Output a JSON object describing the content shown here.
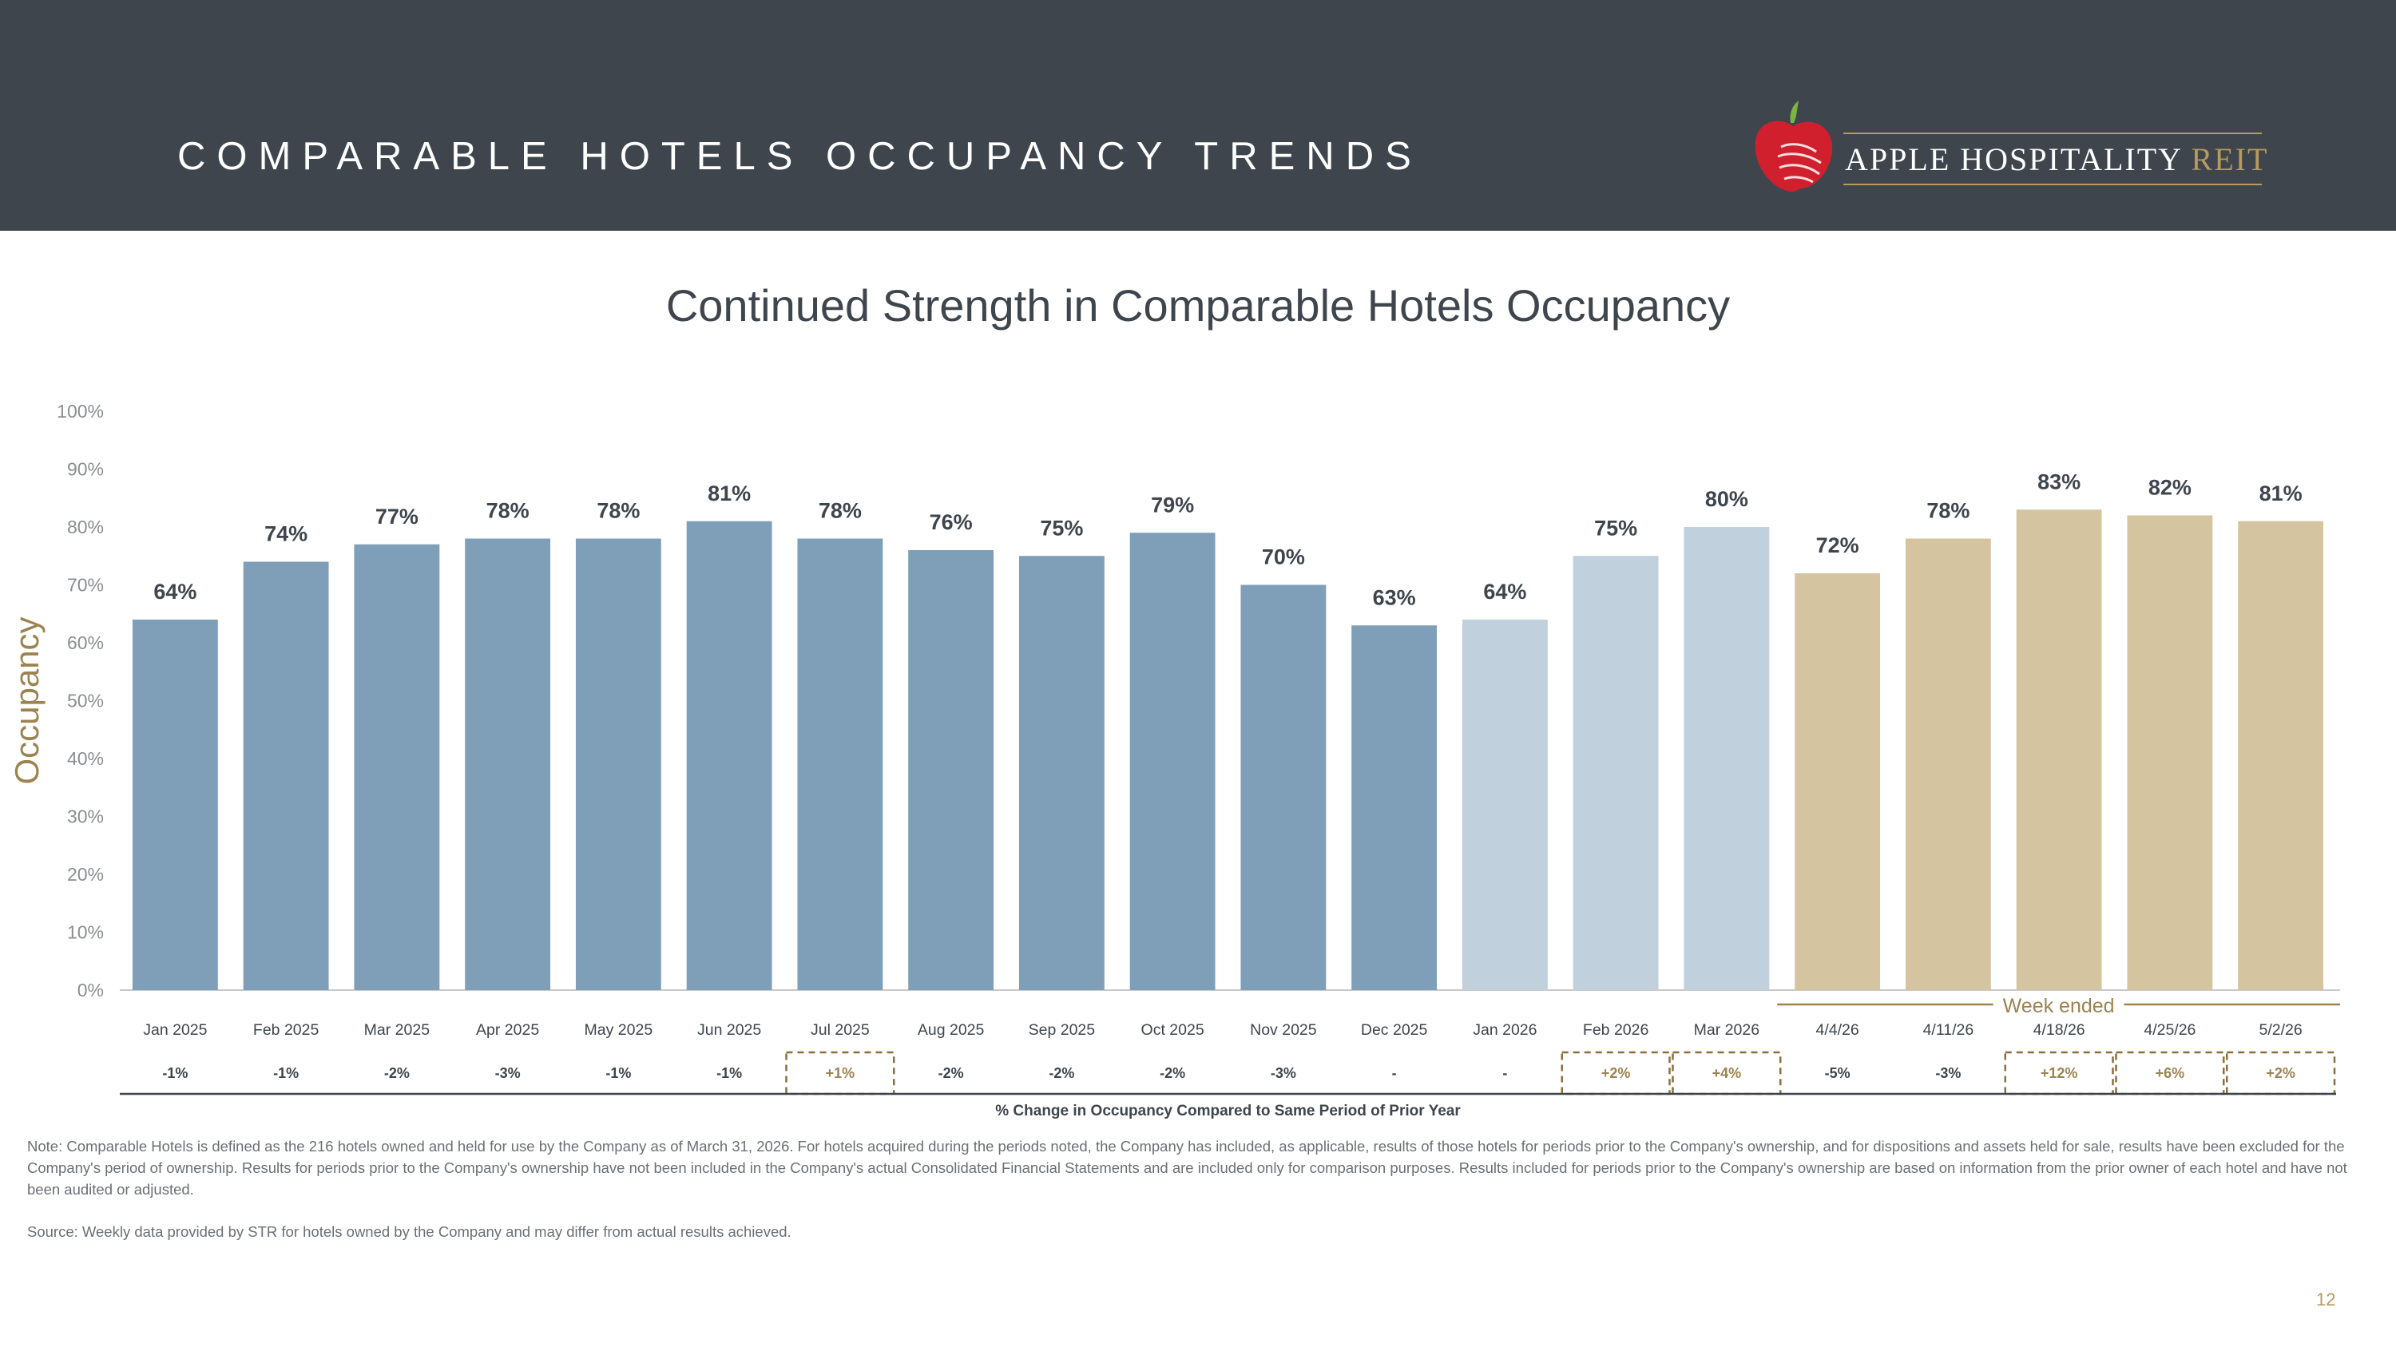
{
  "header": {
    "title": "COMPARABLE HOTELS OCCUPANCY TRENDS",
    "logo_main": "APPLE HOSPITALITY",
    "logo_accent": "REIT"
  },
  "subtitle": "Continued Strength in Comparable Hotels Occupancy",
  "colors": {
    "header_bg": "#3e454d",
    "bar_2025": "#7f9fb8",
    "bar_2026_month": "#c0d0dd",
    "bar_week": "#d4c4a0",
    "accent_gold": "#9c8350",
    "dashed_box": "#8a6f3c"
  },
  "chart_data": {
    "type": "bar",
    "title": "Continued Strength in Comparable Hotels Occupancy",
    "ylabel": "Occupancy",
    "xlabel": "",
    "ylim": [
      0,
      100
    ],
    "yticks": [
      "0%",
      "10%",
      "20%",
      "30%",
      "40%",
      "50%",
      "60%",
      "70%",
      "80%",
      "90%",
      "100%"
    ],
    "grid": false,
    "categories": [
      "Jan 2025",
      "Feb 2025",
      "Mar 2025",
      "Apr 2025",
      "May 2025",
      "Jun 2025",
      "Jul 2025",
      "Aug 2025",
      "Sep 2025",
      "Oct 2025",
      "Nov 2025",
      "Dec 2025",
      "Jan 2026",
      "Feb 2026",
      "Mar 2026",
      "4/4/26",
      "4/11/26",
      "4/18/26",
      "4/25/26",
      "5/2/26"
    ],
    "values": [
      64,
      74,
      77,
      78,
      78,
      81,
      78,
      76,
      75,
      79,
      70,
      63,
      64,
      75,
      80,
      72,
      78,
      83,
      82,
      81
    ],
    "data_labels": [
      "64%",
      "74%",
      "77%",
      "78%",
      "78%",
      "81%",
      "78%",
      "76%",
      "75%",
      "79%",
      "70%",
      "63%",
      "64%",
      "75%",
      "80%",
      "72%",
      "78%",
      "83%",
      "82%",
      "81%"
    ],
    "bar_groups": [
      "2025",
      "2025",
      "2025",
      "2025",
      "2025",
      "2025",
      "2025",
      "2025",
      "2025",
      "2025",
      "2025",
      "2025",
      "2026m",
      "2026m",
      "2026m",
      "week",
      "week",
      "week",
      "week",
      "week"
    ],
    "week_ended_label": "Week ended",
    "yoy_change": [
      "-1%",
      "-1%",
      "-2%",
      "-3%",
      "-1%",
      "-1%",
      "+1%",
      "-2%",
      "-2%",
      "-2%",
      "-3%",
      "-",
      "-",
      "+2%",
      "+4%",
      "-5%",
      "-3%",
      "+12%",
      "+6%",
      "+2%"
    ],
    "yoy_highlight": [
      false,
      false,
      false,
      false,
      false,
      false,
      true,
      false,
      false,
      false,
      false,
      false,
      false,
      true,
      true,
      false,
      false,
      true,
      true,
      true
    ],
    "yoy_caption": "% Change in Occupancy Compared to Same Period of Prior Year"
  },
  "note": "Note: Comparable Hotels is defined as the 216 hotels owned and held for use by the Company as of March 31, 2026. For hotels acquired during the periods noted, the Company has included, as applicable, results of those hotels for periods prior to the Company's ownership, and for dispositions and assets held for sale, results have been excluded for the Company's period of ownership. Results for periods prior to the Company's ownership have not been included in the Company's actual Consolidated Financial Statements and are included only for comparison purposes. Results included for periods prior to the Company's ownership are based on information from the prior owner of each hotel and have not been audited or adjusted.",
  "source": "Source:  Weekly data provided by STR for hotels owned by the Company and may differ from actual results achieved.",
  "page_number": "12"
}
